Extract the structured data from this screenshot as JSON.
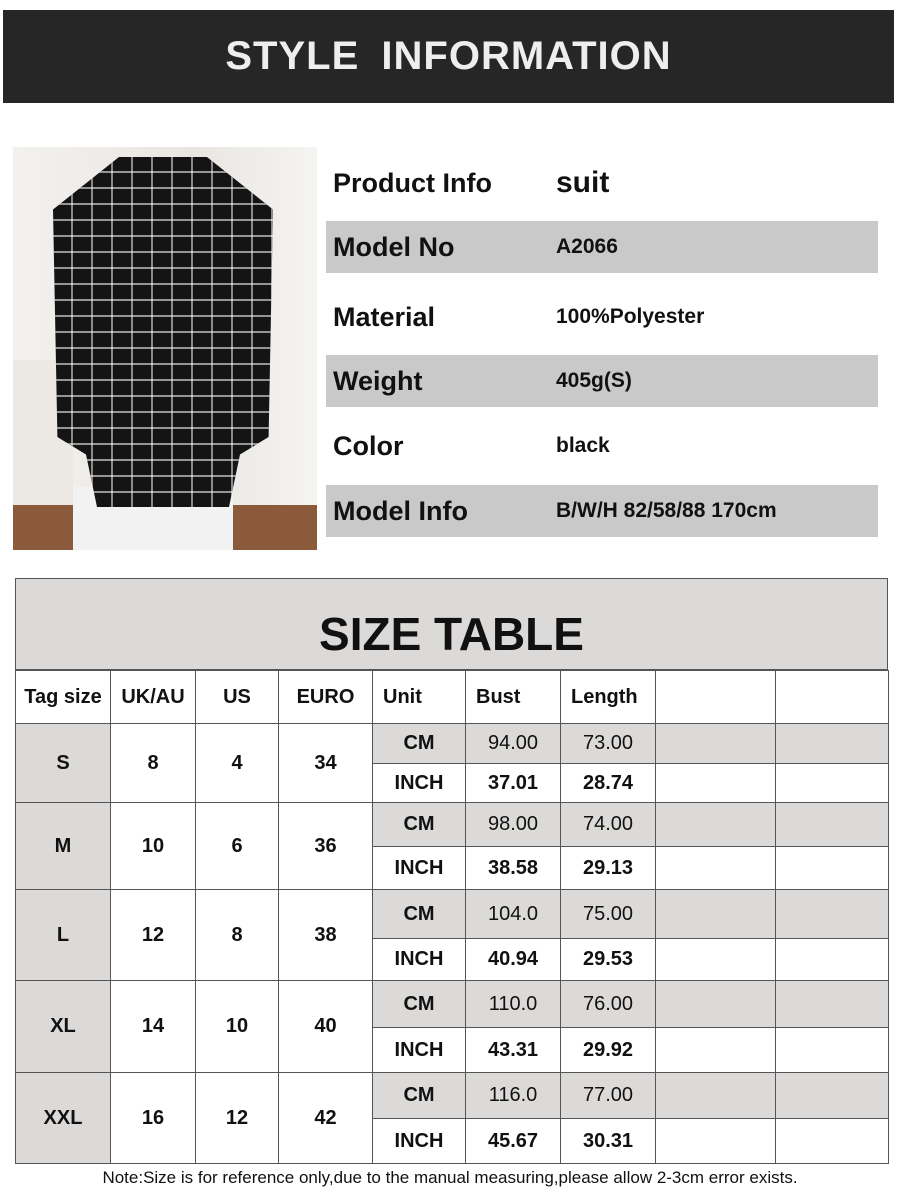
{
  "banner": {
    "title": "STYLE  INFORMATION"
  },
  "product_image": {
    "alt": "Model wearing black tweed plaid double-breasted blazer with white pants"
  },
  "info": [
    {
      "label": "Product Info",
      "value": "suit"
    },
    {
      "label": "Model No",
      "value": "A2066"
    },
    {
      "label": "Material",
      "value": "100%Polyester"
    },
    {
      "label": "Weight",
      "value": "405g(S)"
    },
    {
      "label": "Color",
      "value": "black"
    },
    {
      "label": "Model Info",
      "value": "B/W/H 82/58/88    170cm"
    }
  ],
  "size_table": {
    "title": "SIZE TABLE",
    "headers": [
      "Tag size",
      "UK/AU",
      "US",
      "EURO",
      "Unit",
      "Bust",
      "Length",
      "",
      ""
    ],
    "rows": [
      {
        "tag": "S",
        "uk": "8",
        "us": "4",
        "euro": "34",
        "cm": [
          "CM",
          "94.00",
          "73.00"
        ],
        "inch": [
          "INCH",
          "37.01",
          "28.74"
        ]
      },
      {
        "tag": "M",
        "uk": "10",
        "us": "6",
        "euro": "36",
        "cm": [
          "CM",
          "98.00",
          "74.00"
        ],
        "inch": [
          "INCH",
          "38.58",
          "29.13"
        ]
      },
      {
        "tag": "L",
        "uk": "12",
        "us": "8",
        "euro": "38",
        "cm": [
          "CM",
          "104.0",
          "75.00"
        ],
        "inch": [
          "INCH",
          "40.94",
          "29.53"
        ]
      },
      {
        "tag": "XL",
        "uk": "14",
        "us": "10",
        "euro": "40",
        "cm": [
          "CM",
          "110.0",
          "76.00"
        ],
        "inch": [
          "INCH",
          "43.31",
          "29.92"
        ]
      },
      {
        "tag": "XXL",
        "uk": "16",
        "us": "12",
        "euro": "42",
        "cm": [
          "CM",
          "116.0",
          "77.00"
        ],
        "inch": [
          "INCH",
          "45.67",
          "30.31"
        ]
      }
    ]
  },
  "note": "Note:Size is for reference only,due to the manual measuring,please allow 2-3cm error exists."
}
